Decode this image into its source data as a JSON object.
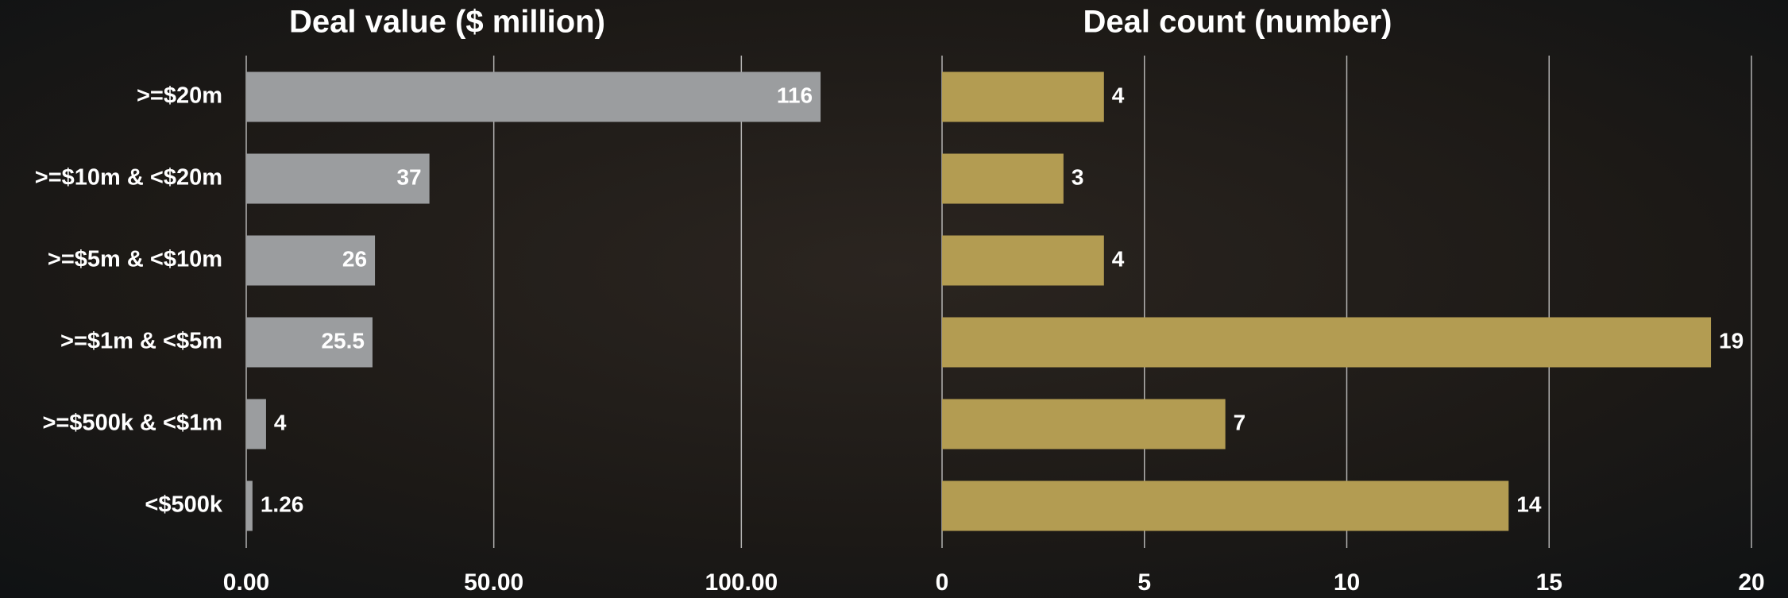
{
  "chart_data": [
    {
      "type": "hbar",
      "title": "Deal value ($ million)",
      "categories": [
        ">=$20m",
        ">=$10m & <$20m",
        ">=$5m & <$10m",
        ">=$1m & <$5m",
        ">=$500k & <$1m",
        "<$500k"
      ],
      "values": [
        116,
        37,
        26,
        25.5,
        4,
        1.26
      ],
      "color": "#9b9d9f",
      "xlim": [
        0,
        120
      ],
      "xticks": [
        {
          "value": 0,
          "label": "0.00"
        },
        {
          "value": 50,
          "label": "50.00"
        },
        {
          "value": 100,
          "label": "100.00"
        }
      ],
      "grid": true,
      "value_label_position": "inside-end"
    },
    {
      "type": "hbar",
      "title": "Deal count (number)",
      "values": [
        4,
        3,
        4,
        19,
        7,
        14
      ],
      "color": "#b39c52",
      "xlim": [
        0,
        20
      ],
      "xticks": [
        0,
        5,
        10,
        15,
        20
      ],
      "grid": true,
      "value_label_position": "outside-end"
    }
  ]
}
